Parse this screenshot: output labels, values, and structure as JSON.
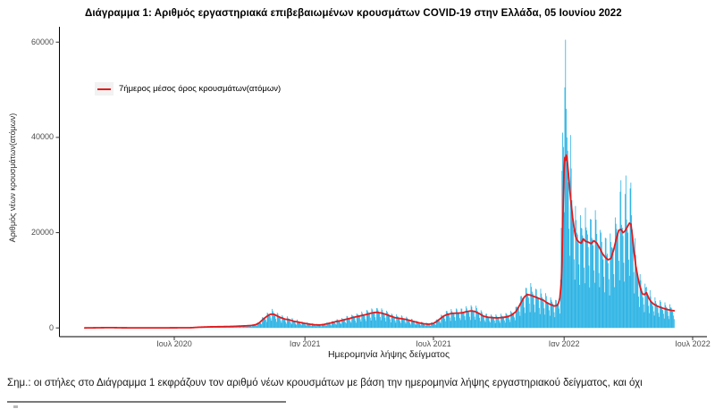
{
  "page": {
    "footnote": "Σημ.: οι στήλες στο Διάγραμμα 1 εκφράζουν τον αριθμό νέων κρουσμάτων με βάση την ημερομηνία λήψης εργαστηριακού δείγματος, και όχι"
  },
  "chart_data": {
    "type": "bar+line",
    "title": "Διάγραμμα 1: Αριθμός εργαστηριακά επιβεβαιωμένων κρουσμάτων COVID-19 στην Ελλάδα, 05 Ιουνίου 2022",
    "xlabel": "Ημερομηνία λήψης δείγματος",
    "ylabel": "Αριθμός νέων κρουσμάτων(ατόμων)",
    "grid": false,
    "bar_color": "#29b2e4",
    "line_color": "#e41a1c",
    "axis_color": "#000000",
    "tick_label_color": "#4d4d4d",
    "legend": {
      "position": "top-left-inside",
      "entries": [
        {
          "swatch": "line",
          "color": "#e41a1c",
          "label": "7ήμερος μέσος όρος κρουσμάτων(ατόμων)"
        }
      ]
    },
    "y_axis": {
      "range": [
        0,
        60000
      ],
      "ticks": [
        0,
        20000,
        40000,
        60000
      ],
      "tick_labels": [
        "0",
        "20000",
        "40000",
        "60000"
      ]
    },
    "x_axis": {
      "range": [
        "2020-02-26",
        "2022-06-05"
      ],
      "ticks": [
        {
          "date": "2020-07-01",
          "label": "Ιουλ 2020"
        },
        {
          "date": "2021-01-01",
          "label": "Ιαν 2021"
        },
        {
          "date": "2021-07-01",
          "label": "Ιουλ 2021"
        },
        {
          "date": "2022-01-01",
          "label": "Ιαν 2022"
        },
        {
          "date": "2022-07-01",
          "label": "Ιουλ 2022"
        }
      ]
    },
    "series": [
      {
        "name": "daily-confirmed-cases-bars",
        "type": "bar",
        "model": {
          "base": "avg_7day",
          "weekday_factors": {
            "sun": 0.5,
            "mon": 1.32,
            "tue": 1.22,
            "wed": 1.1,
            "thu": 1.03,
            "fri": 0.95,
            "sat": 0.7
          },
          "jitter": 0.12,
          "overrides": {
            "2021-12-28": 21000,
            "2021-12-29": 33000,
            "2021-12-30": 41000,
            "2021-12-31": 38000,
            "2022-01-02": 50500,
            "2022-01-03": 60500,
            "2022-01-04": 46000,
            "2022-01-05": 40000,
            "2022-01-10": 40500,
            "2022-01-11": 33500,
            "2022-03-22": 31000,
            "2022-03-29": 32000,
            "2022-04-05": 30500
          }
        }
      },
      {
        "name": "avg-7day-line",
        "type": "line",
        "points": [
          [
            "2020-02-26",
            2
          ],
          [
            "2020-03-10",
            25
          ],
          [
            "2020-03-25",
            55
          ],
          [
            "2020-04-05",
            60
          ],
          [
            "2020-04-20",
            25
          ],
          [
            "2020-05-05",
            15
          ],
          [
            "2020-05-25",
            12
          ],
          [
            "2020-06-10",
            15
          ],
          [
            "2020-06-25",
            22
          ],
          [
            "2020-07-10",
            35
          ],
          [
            "2020-07-25",
            45
          ],
          [
            "2020-08-05",
            150
          ],
          [
            "2020-08-20",
            230
          ],
          [
            "2020-09-05",
            270
          ],
          [
            "2020-09-20",
            310
          ],
          [
            "2020-10-01",
            380
          ],
          [
            "2020-10-10",
            440
          ],
          [
            "2020-10-18",
            520
          ],
          [
            "2020-10-24",
            700
          ],
          [
            "2020-10-29",
            1100
          ],
          [
            "2020-11-03",
            1800
          ],
          [
            "2020-11-08",
            2400
          ],
          [
            "2020-11-13",
            2850
          ],
          [
            "2020-11-18",
            2900
          ],
          [
            "2020-11-23",
            2500
          ],
          [
            "2020-11-28",
            2150
          ],
          [
            "2020-12-04",
            1850
          ],
          [
            "2020-12-10",
            1700
          ],
          [
            "2020-12-16",
            1400
          ],
          [
            "2020-12-22",
            1250
          ],
          [
            "2020-12-28",
            1050
          ],
          [
            "2021-01-03",
            900
          ],
          [
            "2021-01-09",
            760
          ],
          [
            "2021-01-15",
            650
          ],
          [
            "2021-01-21",
            610
          ],
          [
            "2021-01-27",
            700
          ],
          [
            "2021-02-02",
            900
          ],
          [
            "2021-02-08",
            1100
          ],
          [
            "2021-02-14",
            1350
          ],
          [
            "2021-02-20",
            1500
          ],
          [
            "2021-02-26",
            1750
          ],
          [
            "2021-03-04",
            1950
          ],
          [
            "2021-03-10",
            2200
          ],
          [
            "2021-03-16",
            2400
          ],
          [
            "2021-03-22",
            2600
          ],
          [
            "2021-03-28",
            2800
          ],
          [
            "2021-04-03",
            3050
          ],
          [
            "2021-04-09",
            3250
          ],
          [
            "2021-04-13",
            3270
          ],
          [
            "2021-04-19",
            3100
          ],
          [
            "2021-04-25",
            2850
          ],
          [
            "2021-05-01",
            2500
          ],
          [
            "2021-05-08",
            2150
          ],
          [
            "2021-05-15",
            1980
          ],
          [
            "2021-05-22",
            1820
          ],
          [
            "2021-05-29",
            1560
          ],
          [
            "2021-06-05",
            1280
          ],
          [
            "2021-06-12",
            1020
          ],
          [
            "2021-06-19",
            840
          ],
          [
            "2021-06-25",
            780
          ],
          [
            "2021-07-01",
            950
          ],
          [
            "2021-07-06",
            1400
          ],
          [
            "2021-07-11",
            2000
          ],
          [
            "2021-07-16",
            2550
          ],
          [
            "2021-07-21",
            2850
          ],
          [
            "2021-07-27",
            3050
          ],
          [
            "2021-08-03",
            3100
          ],
          [
            "2021-08-10",
            3150
          ],
          [
            "2021-08-16",
            3400
          ],
          [
            "2021-08-22",
            3560
          ],
          [
            "2021-08-28",
            3480
          ],
          [
            "2021-09-03",
            3050
          ],
          [
            "2021-09-09",
            2500
          ],
          [
            "2021-09-15",
            2250
          ],
          [
            "2021-09-22",
            2150
          ],
          [
            "2021-09-29",
            2100
          ],
          [
            "2021-10-06",
            2180
          ],
          [
            "2021-10-13",
            2350
          ],
          [
            "2021-10-19",
            2700
          ],
          [
            "2021-10-25",
            3400
          ],
          [
            "2021-10-29",
            4400
          ],
          [
            "2021-11-02",
            5500
          ],
          [
            "2021-11-06",
            6500
          ],
          [
            "2021-11-10",
            7000
          ],
          [
            "2021-11-14",
            6900
          ],
          [
            "2021-11-18",
            6700
          ],
          [
            "2021-11-23",
            6400
          ],
          [
            "2021-11-28",
            6100
          ],
          [
            "2021-12-03",
            5800
          ],
          [
            "2021-12-08",
            5250
          ],
          [
            "2021-12-13",
            4900
          ],
          [
            "2021-12-18",
            4600
          ],
          [
            "2021-12-22",
            4700
          ],
          [
            "2021-12-24",
            5200
          ],
          [
            "2021-12-26",
            6300
          ],
          [
            "2021-12-28",
            9500
          ],
          [
            "2021-12-29",
            14000
          ],
          [
            "2021-12-30",
            21000
          ],
          [
            "2021-12-31",
            28000
          ],
          [
            "2022-01-01",
            33500
          ],
          [
            "2022-01-02",
            35800
          ],
          [
            "2022-01-03",
            35200
          ],
          [
            "2022-01-04",
            36300
          ],
          [
            "2022-01-05",
            35800
          ],
          [
            "2022-01-07",
            32500
          ],
          [
            "2022-01-09",
            29000
          ],
          [
            "2022-01-11",
            26000
          ],
          [
            "2022-01-13",
            23200
          ],
          [
            "2022-01-15",
            21000
          ],
          [
            "2022-01-17",
            19300
          ],
          [
            "2022-01-19",
            18500
          ],
          [
            "2022-01-22",
            18000
          ],
          [
            "2022-01-25",
            17800
          ],
          [
            "2022-01-28",
            18700
          ],
          [
            "2022-01-31",
            18200
          ],
          [
            "2022-02-04",
            18000
          ],
          [
            "2022-02-08",
            17700
          ],
          [
            "2022-02-12",
            18300
          ],
          [
            "2022-02-16",
            17800
          ],
          [
            "2022-02-20",
            16800
          ],
          [
            "2022-02-24",
            15600
          ],
          [
            "2022-02-28",
            14800
          ],
          [
            "2022-03-04",
            14300
          ],
          [
            "2022-03-08",
            14600
          ],
          [
            "2022-03-12",
            16500
          ],
          [
            "2022-03-16",
            19000
          ],
          [
            "2022-03-19",
            20500
          ],
          [
            "2022-03-22",
            20700
          ],
          [
            "2022-03-25",
            20000
          ],
          [
            "2022-03-28",
            20400
          ],
          [
            "2022-03-31",
            21200
          ],
          [
            "2022-04-03",
            22000
          ],
          [
            "2022-04-05",
            21800
          ],
          [
            "2022-04-07",
            19500
          ],
          [
            "2022-04-09",
            16500
          ],
          [
            "2022-04-12",
            13000
          ],
          [
            "2022-04-15",
            10500
          ],
          [
            "2022-04-18",
            8600
          ],
          [
            "2022-04-21",
            7200
          ],
          [
            "2022-04-24",
            7000
          ],
          [
            "2022-04-27",
            7400
          ],
          [
            "2022-04-30",
            6300
          ],
          [
            "2022-05-04",
            5400
          ],
          [
            "2022-05-08",
            4900
          ],
          [
            "2022-05-12",
            4600
          ],
          [
            "2022-05-16",
            4350
          ],
          [
            "2022-05-20",
            4150
          ],
          [
            "2022-05-24",
            3950
          ],
          [
            "2022-05-28",
            3800
          ],
          [
            "2022-06-01",
            3700
          ],
          [
            "2022-06-05",
            3600
          ]
        ]
      }
    ]
  }
}
